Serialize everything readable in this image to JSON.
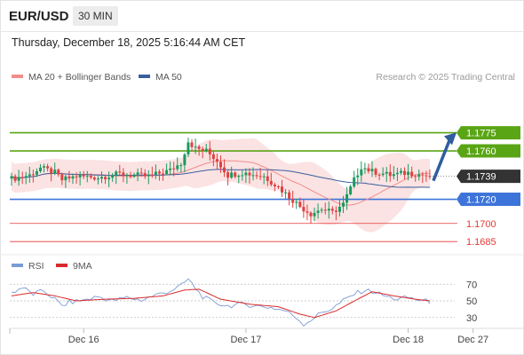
{
  "header": {
    "symbol": "EUR/USD",
    "timeframe": "30 MIN",
    "datetime": "Thursday, December 18, 2025 5:16:44 AM CET"
  },
  "colors": {
    "green": "#5aa516",
    "blue": "#3d74d9",
    "red": "#e53935",
    "dark": "#333333",
    "ma50": "#3a5f9e",
    "ma20": "#f28c8c",
    "band": "#fadada",
    "up": "#1a9a5f",
    "down": "#e04141",
    "rsi": "#7b9bd6",
    "rsi_ma": "#d92b2b",
    "arrow": "#2f5d9e"
  },
  "chart_data": [
    {
      "type": "candlestick",
      "legend": [
        {
          "name": "MA 20 + Bollinger Bands",
          "color": "#f28c8c"
        },
        {
          "name": "MA 50",
          "color": "#3a5f9e"
        }
      ],
      "copyright": "Research © 2025 Trading Central",
      "y_range": [
        1.168,
        1.1796
      ],
      "x_ticks": [
        {
          "label": "Dec 16",
          "index": 20
        },
        {
          "label": "Dec 17",
          "index": 65
        },
        {
          "label": "Dec 18",
          "index": 110
        },
        {
          "label": "Dec 27",
          "index": 128
        }
      ],
      "last_index": 116,
      "current_price": {
        "label": "1.1739",
        "value": 1.1739
      },
      "levels": [
        {
          "label": "1.1775",
          "value": 1.1775,
          "role": "resistance",
          "style": "green"
        },
        {
          "label": "1.1760",
          "value": 1.176,
          "role": "resistance",
          "style": "green"
        },
        {
          "label": "1.1720",
          "value": 1.172,
          "role": "support",
          "style": "blue"
        },
        {
          "label": "1.1700",
          "value": 1.17,
          "role": "support",
          "style": "red"
        },
        {
          "label": "1.1685",
          "value": 1.1685,
          "role": "support",
          "style": "red"
        }
      ],
      "forecast_arrow": {
        "direction": "up",
        "from_value": 1.1739,
        "to_value": 1.1773
      },
      "close_keypoints": [
        [
          0,
          1.1737
        ],
        [
          5,
          1.174
        ],
        [
          8,
          1.1746
        ],
        [
          12,
          1.1742
        ],
        [
          14,
          1.1736
        ],
        [
          18,
          1.1739
        ],
        [
          24,
          1.1738
        ],
        [
          30,
          1.1741
        ],
        [
          38,
          1.1739
        ],
        [
          44,
          1.1744
        ],
        [
          47,
          1.175
        ],
        [
          49,
          1.1768
        ],
        [
          51,
          1.1762
        ],
        [
          54,
          1.176
        ],
        [
          57,
          1.1752
        ],
        [
          60,
          1.174
        ],
        [
          64,
          1.1742
        ],
        [
          70,
          1.1739
        ],
        [
          74,
          1.173
        ],
        [
          77,
          1.1722
        ],
        [
          80,
          1.1714
        ],
        [
          83,
          1.1708
        ],
        [
          86,
          1.1712
        ],
        [
          89,
          1.1709
        ],
        [
          92,
          1.1716
        ],
        [
          95,
          1.1736
        ],
        [
          97,
          1.1747
        ],
        [
          100,
          1.1743
        ],
        [
          105,
          1.174
        ],
        [
          110,
          1.1742
        ],
        [
          116,
          1.1739
        ]
      ]
    },
    {
      "type": "line",
      "legend": [
        {
          "name": "RSI",
          "color": "#7b9bd6"
        },
        {
          "name": "9MA",
          "color": "#d92b2b"
        }
      ],
      "y_range": [
        18,
        82
      ],
      "y_ticks": [
        {
          "label": "70",
          "value": 70
        },
        {
          "label": "50",
          "value": 50
        },
        {
          "label": "30",
          "value": 30
        }
      ],
      "rsi_keypoints": [
        [
          0,
          60
        ],
        [
          3,
          66
        ],
        [
          6,
          58
        ],
        [
          9,
          62
        ],
        [
          12,
          52
        ],
        [
          14,
          44
        ],
        [
          16,
          48
        ],
        [
          20,
          51
        ],
        [
          24,
          55
        ],
        [
          28,
          50
        ],
        [
          32,
          54
        ],
        [
          36,
          51
        ],
        [
          40,
          57
        ],
        [
          44,
          62
        ],
        [
          47,
          68
        ],
        [
          49,
          76
        ],
        [
          51,
          65
        ],
        [
          53,
          55
        ],
        [
          56,
          48
        ],
        [
          60,
          44
        ],
        [
          64,
          46
        ],
        [
          68,
          44
        ],
        [
          72,
          42
        ],
        [
          76,
          38
        ],
        [
          79,
          30
        ],
        [
          81,
          22
        ],
        [
          83,
          27
        ],
        [
          86,
          36
        ],
        [
          89,
          41
        ],
        [
          92,
          50
        ],
        [
          95,
          58
        ],
        [
          98,
          63
        ],
        [
          101,
          60
        ],
        [
          104,
          55
        ],
        [
          107,
          52
        ],
        [
          110,
          54
        ],
        [
          113,
          51
        ],
        [
          116,
          49
        ]
      ],
      "ma_keypoints": [
        [
          0,
          56
        ],
        [
          6,
          60
        ],
        [
          12,
          56
        ],
        [
          18,
          50
        ],
        [
          26,
          52
        ],
        [
          34,
          53
        ],
        [
          42,
          56
        ],
        [
          48,
          63
        ],
        [
          52,
          64
        ],
        [
          58,
          52
        ],
        [
          66,
          46
        ],
        [
          74,
          43
        ],
        [
          80,
          34
        ],
        [
          84,
          30
        ],
        [
          90,
          38
        ],
        [
          96,
          52
        ],
        [
          100,
          61
        ],
        [
          106,
          56
        ],
        [
          112,
          52
        ],
        [
          116,
          50
        ]
      ]
    }
  ]
}
